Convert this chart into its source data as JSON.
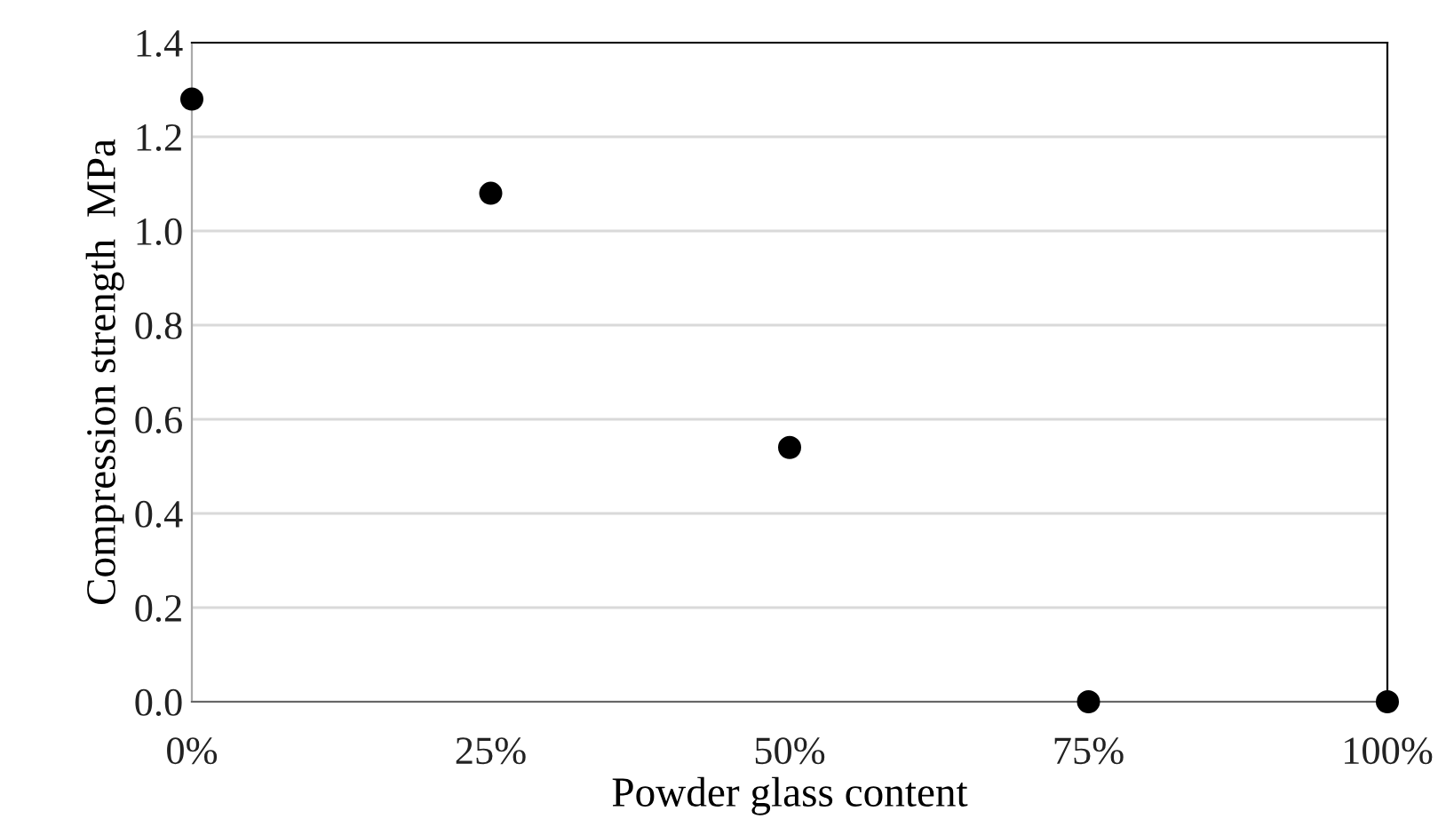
{
  "chart_data": {
    "type": "scatter",
    "xlabel": "Powder glass content",
    "ylabel": "Compression strength  MPa",
    "x": [
      0,
      25,
      50,
      75,
      100
    ],
    "series": [
      {
        "color": "#000000",
        "values": [
          1.28,
          1.08,
          0.54,
          0,
          0
        ]
      }
    ],
    "xlim": [
      0,
      100
    ],
    "xticks": [
      {
        "value": 0,
        "label": "0%"
      },
      {
        "value": 25,
        "label": "25%"
      },
      {
        "value": 50,
        "label": "50%"
      },
      {
        "value": 75,
        "label": "75%"
      },
      {
        "value": 100,
        "label": "100%"
      }
    ],
    "ylim": [
      0,
      1.4
    ],
    "yticks": [
      {
        "value": 0,
        "label": "0.0"
      },
      {
        "value": 0.2,
        "label": "0.2"
      },
      {
        "value": 0.4,
        "label": "0.4"
      },
      {
        "value": 0.6,
        "label": "0.6"
      },
      {
        "value": 0.8,
        "label": "0.8"
      },
      {
        "value": 1.0,
        "label": "1.0"
      },
      {
        "value": 1.2,
        "label": "1.2"
      },
      {
        "value": 1.4,
        "label": "1.4"
      }
    ],
    "grid": "y",
    "marker": "circle"
  }
}
